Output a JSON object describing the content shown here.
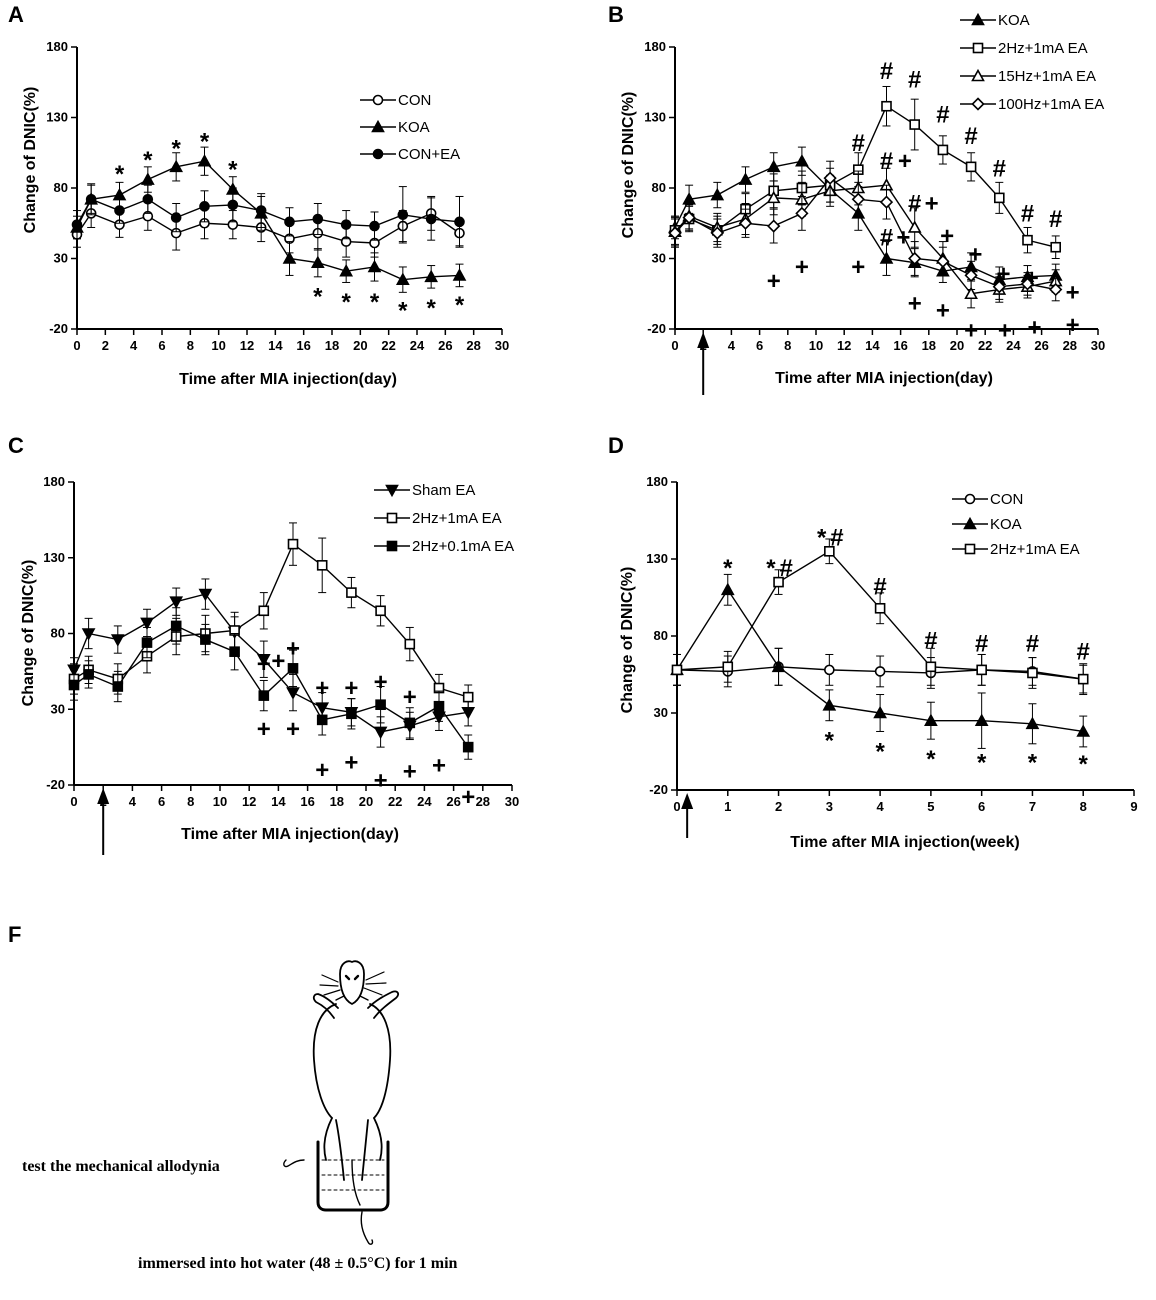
{
  "colors": {
    "ink": "#000000",
    "background": "#ffffff"
  },
  "chart_data": [
    {
      "id": "A",
      "panel_label": "A",
      "type": "line",
      "xlabel": "Time after MIA injection(day)",
      "ylabel": "Change of DNIC(%)",
      "xlim": [
        0,
        30
      ],
      "ylim": [
        -20,
        180
      ],
      "xticks": [
        0,
        2,
        4,
        6,
        8,
        10,
        12,
        14,
        16,
        18,
        20,
        22,
        24,
        26,
        28,
        30
      ],
      "yticks": [
        -20,
        30,
        80,
        130,
        180
      ],
      "legend": "top-right",
      "arrow_at": null,
      "series": [
        {
          "name": "CON",
          "marker": "circle-open",
          "x": [
            0,
            1,
            3,
            5,
            7,
            9,
            11,
            13,
            15,
            17,
            19,
            21,
            23,
            25,
            27
          ],
          "y": [
            47,
            62,
            54,
            60,
            48,
            55,
            54,
            52,
            44,
            48,
            42,
            41,
            53,
            62,
            48
          ],
          "err": [
            9,
            10,
            9,
            10,
            12,
            11,
            10,
            10,
            10,
            12,
            11,
            10,
            11,
            12,
            9
          ]
        },
        {
          "name": "KOA",
          "marker": "triangle-filled",
          "x": [
            0,
            1,
            3,
            5,
            7,
            9,
            11,
            13,
            15,
            17,
            19,
            21,
            23,
            25,
            27
          ],
          "y": [
            52,
            72,
            75,
            86,
            95,
            99,
            79,
            62,
            30,
            27,
            21,
            24,
            15,
            17,
            18
          ],
          "err": [
            8,
            10,
            9,
            9,
            10,
            10,
            9,
            12,
            12,
            10,
            8,
            10,
            9,
            8,
            8
          ]
        },
        {
          "name": "CON+EA",
          "marker": "circle-filled",
          "x": [
            0,
            1,
            3,
            5,
            7,
            9,
            11,
            13,
            15,
            17,
            19,
            21,
            23,
            25,
            27
          ],
          "y": [
            54,
            72,
            64,
            72,
            59,
            67,
            68,
            64,
            56,
            58,
            54,
            53,
            61,
            58,
            56
          ],
          "err": [
            10,
            11,
            9,
            10,
            10,
            11,
            12,
            12,
            10,
            11,
            10,
            10,
            20,
            15,
            18
          ]
        }
      ],
      "annotations": [
        {
          "text": "*",
          "x": 3,
          "y": 90
        },
        {
          "text": "*",
          "x": 5,
          "y": 100
        },
        {
          "text": "*",
          "x": 7,
          "y": 108
        },
        {
          "text": "*",
          "x": 9,
          "y": 113
        },
        {
          "text": "*",
          "x": 11,
          "y": 93
        },
        {
          "text": "*",
          "x": 17,
          "y": 3
        },
        {
          "text": "*",
          "x": 19,
          "y": -1
        },
        {
          "text": "*",
          "x": 21,
          "y": -1
        },
        {
          "text": "*",
          "x": 23,
          "y": -7
        },
        {
          "text": "*",
          "x": 25,
          "y": -5
        },
        {
          "text": "*",
          "x": 27,
          "y": -3
        }
      ]
    },
    {
      "id": "B",
      "panel_label": "B",
      "type": "line",
      "xlabel": "Time after MIA injection(day)",
      "ylabel": "Change of DNIC(%)",
      "xlim": [
        0,
        30
      ],
      "ylim": [
        -20,
        180
      ],
      "xticks": [
        0,
        2,
        4,
        6,
        8,
        10,
        12,
        14,
        16,
        18,
        20,
        22,
        24,
        26,
        28,
        30
      ],
      "yticks": [
        -20,
        30,
        80,
        130,
        180
      ],
      "legend": "top-right",
      "arrow_at": 2,
      "series": [
        {
          "name": "KOA",
          "marker": "triangle-filled",
          "x": [
            0,
            1,
            3,
            5,
            7,
            9,
            11,
            13,
            15,
            17,
            19,
            21,
            23,
            25,
            27
          ],
          "y": [
            52,
            72,
            75,
            86,
            95,
            99,
            79,
            62,
            30,
            27,
            21,
            24,
            15,
            17,
            18
          ],
          "err": [
            8,
            10,
            9,
            9,
            10,
            10,
            9,
            12,
            12,
            10,
            8,
            10,
            9,
            8,
            8
          ]
        },
        {
          "name": "2Hz+1mA EA",
          "marker": "square-open",
          "x": [
            0,
            1,
            3,
            5,
            7,
            9,
            11,
            13,
            15,
            17,
            19,
            21,
            23,
            25,
            27
          ],
          "y": [
            50,
            58,
            50,
            65,
            78,
            80,
            82,
            93,
            138,
            125,
            107,
            95,
            73,
            43,
            38
          ],
          "err": [
            10,
            9,
            10,
            11,
            12,
            12,
            12,
            12,
            14,
            18,
            10,
            10,
            11,
            9,
            8
          ]
        },
        {
          "name": "15Hz+1mA EA",
          "marker": "triangle-open",
          "x": [
            0,
            1,
            3,
            5,
            7,
            9,
            11,
            13,
            15,
            17,
            19,
            21,
            23,
            25,
            27
          ],
          "y": [
            49,
            60,
            52,
            58,
            73,
            72,
            78,
            80,
            82,
            52,
            30,
            5,
            8,
            10,
            14
          ],
          "err": [
            10,
            9,
            10,
            11,
            12,
            12,
            11,
            12,
            12,
            14,
            12,
            10,
            9,
            8,
            8
          ]
        },
        {
          "name": "100Hz+1mA EA",
          "marker": "diamond-open",
          "x": [
            0,
            1,
            3,
            5,
            7,
            9,
            11,
            13,
            15,
            17,
            19,
            21,
            23,
            25,
            27
          ],
          "y": [
            48,
            59,
            48,
            55,
            53,
            62,
            87,
            72,
            70,
            30,
            28,
            18,
            10,
            12,
            8
          ],
          "err": [
            10,
            9,
            10,
            10,
            12,
            12,
            12,
            12,
            12,
            12,
            10,
            10,
            9,
            8,
            8
          ]
        }
      ],
      "annotations": [
        {
          "text": "#",
          "x": 13,
          "y": 112
        },
        {
          "text": "#",
          "x": 15,
          "y": 163
        },
        {
          "text": "#",
          "x": 17,
          "y": 157
        },
        {
          "text": "#",
          "x": 19,
          "y": 132
        },
        {
          "text": "#",
          "x": 21,
          "y": 117
        },
        {
          "text": "#",
          "x": 23,
          "y": 94
        },
        {
          "text": "#",
          "x": 25,
          "y": 62
        },
        {
          "text": "#",
          "x": 27,
          "y": 58
        },
        {
          "text": "#",
          "x": 15,
          "y": 99
        },
        {
          "text": "+",
          "x": 16.3,
          "y": 99
        },
        {
          "text": "#",
          "x": 17,
          "y": 69
        },
        {
          "text": "+",
          "x": 18.2,
          "y": 69
        },
        {
          "text": "#",
          "x": 15,
          "y": 45
        },
        {
          "text": "+",
          "x": 16.2,
          "y": 45
        },
        {
          "text": "+",
          "x": 19.3,
          "y": 46
        },
        {
          "text": "+",
          "x": 21.3,
          "y": 33
        },
        {
          "text": "+",
          "x": 23.3,
          "y": 19
        },
        {
          "text": "+",
          "x": 25.3,
          "y": 16
        },
        {
          "text": "+",
          "x": 7,
          "y": 14
        },
        {
          "text": "+",
          "x": 9,
          "y": 24
        },
        {
          "text": "+",
          "x": 13,
          "y": 24
        },
        {
          "text": "+",
          "x": 17,
          "y": -2
        },
        {
          "text": "+",
          "x": 19,
          "y": -7
        },
        {
          "text": "+",
          "x": 21,
          "y": -21
        },
        {
          "text": "+",
          "x": 23.4,
          "y": -21
        },
        {
          "text": "+",
          "x": 25.5,
          "y": -19
        },
        {
          "text": "+",
          "x": 28.2,
          "y": -17
        },
        {
          "text": "+",
          "x": 28.2,
          "y": 6
        }
      ]
    },
    {
      "id": "C",
      "panel_label": "C",
      "type": "line",
      "xlabel": "Time after MIA injection(day)",
      "ylabel": "Change of DNIC(%)",
      "xlim": [
        0,
        30
      ],
      "ylim": [
        -20,
        180
      ],
      "xticks": [
        0,
        2,
        4,
        6,
        8,
        10,
        12,
        14,
        16,
        18,
        20,
        22,
        24,
        26,
        28,
        30
      ],
      "yticks": [
        -20,
        30,
        80,
        130,
        180
      ],
      "legend": "top-right",
      "arrow_at": 2,
      "series": [
        {
          "name": "Sham EA",
          "marker": "triangle-down-filled",
          "x": [
            0,
            1,
            3,
            5,
            7,
            9,
            11,
            13,
            15,
            17,
            19,
            21,
            23,
            25,
            27
          ],
          "y": [
            56,
            80,
            76,
            87,
            101,
            106,
            81,
            63,
            41,
            31,
            28,
            15,
            19,
            25,
            28
          ],
          "err": [
            8,
            10,
            9,
            9,
            9,
            10,
            10,
            12,
            12,
            10,
            9,
            10,
            9,
            9,
            9
          ]
        },
        {
          "name": "2Hz+1mA EA",
          "marker": "square-open",
          "x": [
            0,
            1,
            3,
            5,
            7,
            9,
            11,
            13,
            15,
            17,
            19,
            21,
            23,
            25,
            27
          ],
          "y": [
            50,
            56,
            50,
            65,
            78,
            80,
            82,
            95,
            139,
            125,
            107,
            95,
            73,
            44,
            38
          ],
          "err": [
            10,
            9,
            10,
            11,
            12,
            12,
            12,
            12,
            14,
            18,
            10,
            10,
            11,
            9,
            8
          ]
        },
        {
          "name": "2Hz+0.1mA EA",
          "marker": "square-filled",
          "x": [
            0,
            1,
            3,
            5,
            7,
            9,
            11,
            13,
            15,
            17,
            19,
            21,
            23,
            25,
            27
          ],
          "y": [
            46,
            53,
            45,
            74,
            85,
            76,
            68,
            39,
            57,
            23,
            27,
            33,
            21,
            32,
            5
          ],
          "err": [
            10,
            9,
            10,
            10,
            12,
            10,
            12,
            10,
            12,
            10,
            10,
            12,
            10,
            10,
            8
          ]
        }
      ],
      "annotations": [
        {
          "text": "+",
          "x": 13,
          "y": 60
        },
        {
          "text": "+",
          "x": 14,
          "y": 62
        },
        {
          "text": "+",
          "x": 15,
          "y": 70
        },
        {
          "text": "+",
          "x": 17,
          "y": 44
        },
        {
          "text": "+",
          "x": 19,
          "y": 44
        },
        {
          "text": "+",
          "x": 21,
          "y": 48
        },
        {
          "text": "+",
          "x": 23,
          "y": 38
        },
        {
          "text": "+",
          "x": 13,
          "y": 17
        },
        {
          "text": "+",
          "x": 15,
          "y": 17
        },
        {
          "text": "+",
          "x": 17,
          "y": -10
        },
        {
          "text": "+",
          "x": 19,
          "y": -5
        },
        {
          "text": "+",
          "x": 21,
          "y": -17
        },
        {
          "text": "+",
          "x": 23,
          "y": -11
        },
        {
          "text": "+",
          "x": 25,
          "y": -7
        },
        {
          "text": "+",
          "x": 27,
          "y": -28
        }
      ]
    },
    {
      "id": "D",
      "panel_label": "D",
      "type": "line",
      "xlabel": "Time after MIA injection(week)",
      "ylabel": "Change of DNIC(%)",
      "xlim": [
        0,
        9
      ],
      "ylim": [
        -20,
        180
      ],
      "xticks": [
        0,
        1,
        2,
        3,
        4,
        5,
        6,
        7,
        8,
        9
      ],
      "yticks": [
        -20,
        30,
        80,
        130,
        180
      ],
      "legend": "top-right",
      "arrow_at": 0.2,
      "series": [
        {
          "name": "CON",
          "marker": "circle-open",
          "x": [
            0,
            1,
            2,
            3,
            4,
            5,
            6,
            7,
            8
          ],
          "y": [
            58,
            57,
            60,
            58,
            57,
            56,
            58,
            57,
            52
          ],
          "err": [
            10,
            10,
            12,
            10,
            10,
            10,
            10,
            9,
            9
          ]
        },
        {
          "name": "KOA",
          "marker": "triangle-filled",
          "x": [
            0,
            1,
            2,
            3,
            4,
            5,
            6,
            7,
            8
          ],
          "y": [
            58,
            110,
            60,
            35,
            30,
            25,
            25,
            23,
            18
          ],
          "err": [
            10,
            10,
            12,
            10,
            12,
            12,
            18,
            13,
            10
          ]
        },
        {
          "name": "2Hz+1mA EA",
          "marker": "square-open",
          "x": [
            0,
            1,
            2,
            3,
            4,
            5,
            6,
            7,
            8
          ],
          "y": [
            58,
            60,
            115,
            135,
            98,
            60,
            58,
            56,
            52
          ],
          "err": [
            10,
            10,
            8,
            8,
            10,
            12,
            10,
            10,
            10
          ]
        }
      ],
      "annotations": [
        {
          "text": "*",
          "x": 1,
          "y": 124
        },
        {
          "text": "*",
          "x": 1.85,
          "y": 124
        },
        {
          "text": "#",
          "x": 2.15,
          "y": 124
        },
        {
          "text": "*",
          "x": 2.85,
          "y": 144
        },
        {
          "text": "#",
          "x": 3.15,
          "y": 144
        },
        {
          "text": "#",
          "x": 4,
          "y": 112
        },
        {
          "text": "#",
          "x": 5,
          "y": 77
        },
        {
          "text": "#",
          "x": 6,
          "y": 75
        },
        {
          "text": "#",
          "x": 7,
          "y": 75
        },
        {
          "text": "#",
          "x": 8,
          "y": 70
        },
        {
          "text": "*",
          "x": 3,
          "y": 12
        },
        {
          "text": "*",
          "x": 4,
          "y": 5
        },
        {
          "text": "*",
          "x": 5,
          "y": 0
        },
        {
          "text": "*",
          "x": 6,
          "y": -2
        },
        {
          "text": "*",
          "x": 7,
          "y": -2
        },
        {
          "text": "*",
          "x": 8,
          "y": -3
        }
      ]
    }
  ],
  "panel_F": {
    "label": "F",
    "caption_left": "test the mechanical allodynia",
    "caption_bottom": "immersed into hot water (48 ± 0.5°C) for 1 min"
  }
}
